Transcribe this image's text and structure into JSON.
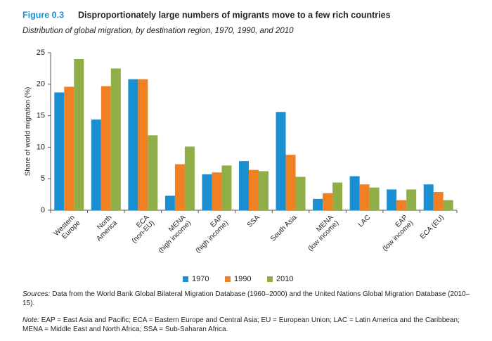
{
  "chart_data": {
    "type": "bar",
    "figure_label": "Figure 0.3",
    "title": "Disproportionately large numbers of migrants move to a few rich countries",
    "subtitle": "Distribution of global migration, by destination region, 1970, 1990, and 2010",
    "y_label": "Share of world migration (%)",
    "categories": [
      "Western\nEurope",
      "North\nAmerica",
      "ECA\n(non-EU)",
      "MENA\n(high income)",
      "EAP\n(high income)",
      "SSA",
      "South Asia",
      "MENA\n(low income)",
      "LAC",
      "EAP\n(low income)",
      "ECA (EU)"
    ],
    "series": [
      {
        "name": "1970",
        "color": "#1a8fd2",
        "values": [
          18.7,
          14.4,
          20.8,
          2.3,
          5.7,
          7.8,
          15.6,
          1.8,
          5.4,
          3.3,
          4.1
        ]
      },
      {
        "name": "1990",
        "color": "#f08122",
        "values": [
          19.6,
          19.7,
          20.8,
          7.3,
          6.0,
          6.4,
          8.8,
          2.7,
          4.1,
          1.6,
          2.9
        ]
      },
      {
        "name": "2010",
        "color": "#8fae48",
        "values": [
          24,
          22.5,
          11.9,
          10.1,
          7.1,
          6.2,
          5.3,
          4.4,
          3.6,
          3.3,
          1.6
        ]
      }
    ],
    "ylim": [
      0,
      25
    ],
    "yticks": [
      0,
      5,
      10,
      15,
      20,
      25
    ],
    "legend": "bottom",
    "sources": {
      "label": "Sources:",
      "text": "Data from the World Bank Global Bilateral Migration Database (1960–2000) and the United Nations Global Migration Database (2010–15)."
    },
    "note": {
      "label": "Note:",
      "text": "EAP = East Asia and Pacific; ECA = Eastern Europe and Central Asia; EU = European Union; LAC = Latin America and the Caribbean; MENA = Middle East and North Africa; SSA = Sub-Saharan Africa."
    }
  }
}
